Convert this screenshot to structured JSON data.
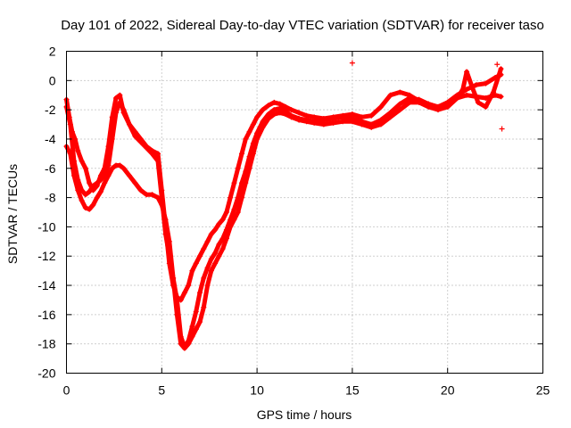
{
  "chart_data": {
    "type": "scatter",
    "title": "Day 101 of 2022, Sidereal Day-to-day VTEC variation (SDTVAR) for receiver taso",
    "xlabel": "GPS time / hours",
    "ylabel": "SDTVAR / TECUs",
    "xlim": [
      0,
      25
    ],
    "ylim": [
      -20,
      2
    ],
    "xticks": [
      0,
      5,
      10,
      15,
      20,
      25
    ],
    "yticks": [
      -20,
      -18,
      -16,
      -14,
      -12,
      -10,
      -8,
      -6,
      -4,
      -2,
      0,
      2
    ],
    "grid": true,
    "marker": "plus",
    "color": "#ff0000",
    "series": [
      {
        "x": [
          0.0,
          0.15,
          0.3,
          0.45,
          0.6,
          0.8,
          1.0,
          1.2,
          1.4,
          1.6,
          1.8,
          2.0,
          2.2,
          2.4,
          2.6,
          2.8,
          3.0,
          3.3,
          3.6,
          3.9,
          4.2,
          4.5,
          4.8,
          5.0,
          5.2,
          5.4,
          5.6,
          5.8,
          6.0,
          6.2,
          6.4,
          6.6,
          6.8,
          7.0,
          7.2,
          7.4,
          7.6,
          7.8,
          8.0,
          8.2,
          8.4,
          8.6,
          8.8,
          9.0,
          9.2,
          9.4,
          9.6,
          9.8,
          10.0,
          10.3,
          10.6,
          10.9,
          11.2,
          11.5,
          11.8,
          12.2,
          12.6,
          13.0,
          13.5,
          14.0,
          14.5,
          15.0,
          15.5,
          16.0,
          16.5,
          17.0,
          17.5,
          18.0,
          18.5,
          19.0,
          19.5,
          20.0,
          20.5,
          21.0,
          21.5,
          22.0,
          22.5,
          22.8
        ],
        "y": [
          -1.3,
          -2.5,
          -3.5,
          -4.0,
          -4.8,
          -5.5,
          -6.0,
          -7.0,
          -7.5,
          -7.2,
          -6.5,
          -6.0,
          -4.5,
          -2.5,
          -1.2,
          -1.0,
          -2.2,
          -3.0,
          -3.5,
          -4.0,
          -4.5,
          -4.8,
          -5.0,
          -7.5,
          -10.0,
          -12.5,
          -14.0,
          -14.8,
          -15.0,
          -14.5,
          -14.0,
          -13.0,
          -12.5,
          -12.0,
          -11.5,
          -11.0,
          -10.5,
          -10.2,
          -9.8,
          -9.5,
          -9.0,
          -8.0,
          -7.0,
          -6.0,
          -5.0,
          -4.0,
          -3.5,
          -3.0,
          -2.5,
          -2.0,
          -1.7,
          -1.5,
          -1.6,
          -1.8,
          -2.0,
          -2.2,
          -2.4,
          -2.5,
          -2.6,
          -2.5,
          -2.4,
          -2.3,
          -2.5,
          -2.4,
          -1.8,
          -1.0,
          -0.8,
          -1.0,
          -1.4,
          -1.6,
          -1.8,
          -1.5,
          -1.2,
          -1.0,
          -1.1,
          -1.2,
          -1.0,
          -1.1
        ]
      },
      {
        "x": [
          0.0,
          0.2,
          0.4,
          0.6,
          0.8,
          1.0,
          1.2,
          1.4,
          1.6,
          1.8,
          2.0,
          2.2,
          2.4,
          2.6,
          2.8,
          3.0,
          3.3,
          3.6,
          3.9,
          4.2,
          4.5,
          4.8,
          5.0,
          5.2,
          5.4,
          5.6,
          5.8,
          6.0,
          6.2,
          6.4,
          6.6,
          6.8,
          7.0,
          7.2,
          7.4,
          7.6,
          7.8,
          8.0,
          8.2,
          8.4,
          8.6,
          8.8,
          9.0,
          9.2,
          9.4,
          9.6,
          9.8,
          10.0,
          10.3,
          10.6,
          10.9,
          11.2,
          11.5,
          11.8,
          12.2,
          12.6,
          13.0,
          13.5,
          14.0,
          14.5,
          15.0,
          15.5,
          16.0,
          16.5,
          17.0,
          17.5,
          18.0,
          18.5,
          19.0,
          19.5,
          20.0,
          20.5,
          20.8,
          21.0,
          21.3,
          21.6,
          22.0,
          22.4,
          22.8
        ],
        "y": [
          -4.5,
          -5.0,
          -6.5,
          -7.5,
          -8.2,
          -8.7,
          -8.8,
          -8.5,
          -8.0,
          -7.6,
          -7.0,
          -6.5,
          -6.0,
          -5.8,
          -5.8,
          -6.0,
          -6.5,
          -7.0,
          -7.5,
          -7.8,
          -7.8,
          -8.0,
          -8.5,
          -9.5,
          -11.0,
          -13.5,
          -16.0,
          -18.0,
          -18.3,
          -18.0,
          -17.5,
          -17.0,
          -16.5,
          -15.5,
          -14.0,
          -13.0,
          -12.5,
          -12.0,
          -11.5,
          -10.8,
          -10.0,
          -9.5,
          -9.0,
          -8.0,
          -7.0,
          -6.0,
          -5.0,
          -4.0,
          -3.2,
          -2.6,
          -2.3,
          -2.2,
          -2.3,
          -2.5,
          -2.7,
          -2.8,
          -2.9,
          -3.0,
          -2.9,
          -2.8,
          -2.8,
          -3.0,
          -3.2,
          -3.0,
          -2.5,
          -2.0,
          -1.5,
          -1.5,
          -1.8,
          -2.0,
          -1.8,
          -1.2,
          -0.6,
          0.6,
          -0.5,
          -1.5,
          -1.8,
          -0.8,
          0.8
        ]
      },
      {
        "x": [
          0.0,
          0.2,
          0.4,
          0.6,
          0.8,
          1.0,
          1.2,
          1.4,
          1.6,
          1.8,
          2.0,
          2.2,
          2.4,
          2.6,
          2.8,
          3.0,
          3.3,
          3.6,
          3.9,
          4.2,
          4.5,
          4.8,
          5.0,
          5.2,
          5.4,
          5.6,
          5.8,
          6.0,
          6.2,
          6.4,
          6.6,
          6.8,
          7.0,
          7.2,
          7.4,
          7.6,
          7.8,
          8.0,
          8.2,
          8.4,
          8.6,
          8.8,
          9.0,
          9.2,
          9.4,
          9.6,
          9.8,
          10.0,
          10.3,
          10.6,
          10.9,
          11.2,
          11.5,
          11.8,
          12.2,
          12.6,
          13.0,
          13.5,
          14.0,
          14.5,
          15.0,
          15.5,
          16.0,
          16.5,
          17.0,
          17.5,
          18.0,
          18.5,
          19.0,
          19.5,
          20.0,
          20.5,
          21.0,
          21.5,
          22.0,
          22.5,
          22.8
        ],
        "y": [
          -1.8,
          -3.0,
          -5.5,
          -6.8,
          -7.5,
          -7.8,
          -7.6,
          -7.2,
          -7.0,
          -6.8,
          -6.5,
          -5.8,
          -4.0,
          -2.2,
          -1.5,
          -2.0,
          -3.0,
          -3.8,
          -4.2,
          -4.6,
          -5.0,
          -5.5,
          -8.0,
          -10.5,
          -12.0,
          -13.5,
          -15.0,
          -17.5,
          -18.2,
          -17.8,
          -16.8,
          -15.8,
          -14.5,
          -13.5,
          -12.8,
          -12.2,
          -11.8,
          -11.2,
          -10.8,
          -10.2,
          -9.5,
          -8.8,
          -8.0,
          -7.0,
          -6.2,
          -5.2,
          -4.3,
          -3.6,
          -2.8,
          -2.3,
          -2.0,
          -1.9,
          -2.1,
          -2.4,
          -2.6,
          -2.7,
          -2.8,
          -2.7,
          -2.6,
          -2.5,
          -2.6,
          -2.8,
          -3.0,
          -2.7,
          -2.2,
          -1.6,
          -1.2,
          -1.3,
          -1.6,
          -1.8,
          -1.5,
          -1.0,
          -0.6,
          -0.3,
          -0.2,
          0.2,
          0.4
        ]
      }
    ],
    "outliers": {
      "x": [
        15.0,
        22.6,
        22.85
      ],
      "y": [
        1.2,
        1.1,
        -3.3
      ]
    }
  }
}
